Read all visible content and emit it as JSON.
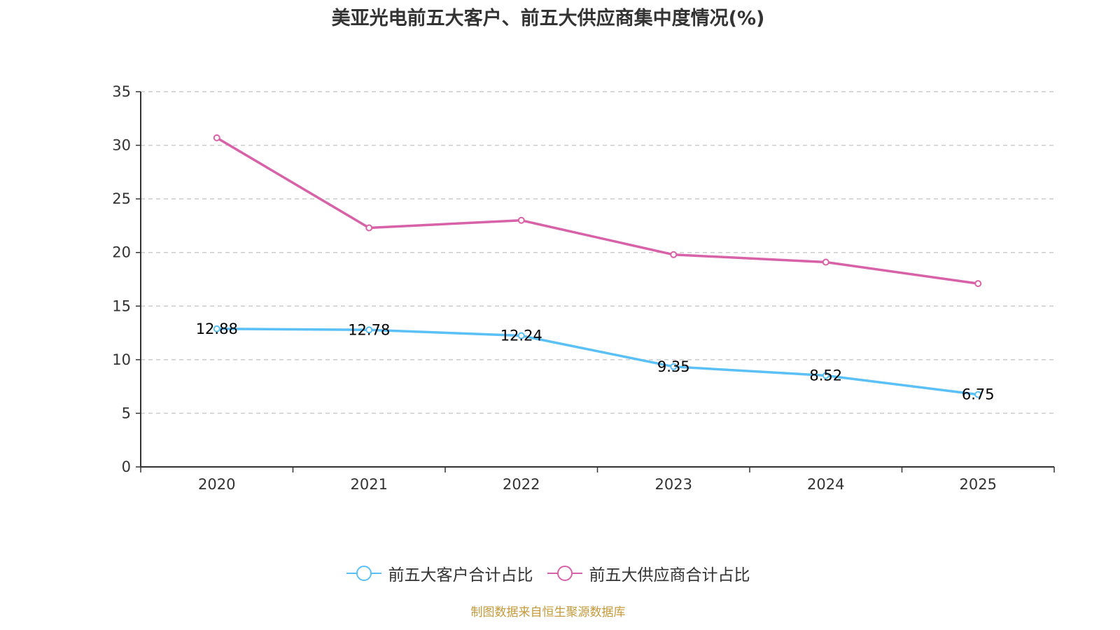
{
  "chart_data": {
    "type": "line",
    "title": "美亚光电前五大客户、前五大供应商集中度情况(%)",
    "xlabel": "",
    "ylabel": "",
    "categories": [
      "2020",
      "2021",
      "2022",
      "2023",
      "2024",
      "2025"
    ],
    "ylim": [
      0,
      35
    ],
    "yticks": [
      0,
      5,
      10,
      15,
      20,
      25,
      30,
      35
    ],
    "grid": true,
    "legend_position": "bottom-center",
    "series": [
      {
        "name": "前五大客户合计占比",
        "color": "#5bc0f5",
        "values": [
          12.88,
          12.78,
          12.24,
          9.35,
          8.52,
          6.75
        ],
        "show_labels": true
      },
      {
        "name": "前五大供应商合计占比",
        "color": "#d862a8",
        "values": [
          30.7,
          22.3,
          23.0,
          19.8,
          19.1,
          17.1
        ],
        "show_labels": false
      }
    ]
  },
  "legend": {
    "items": [
      "前五大客户合计占比",
      "前五大供应商合计占比"
    ]
  },
  "source_note": "制图数据来自恒生聚源数据库"
}
